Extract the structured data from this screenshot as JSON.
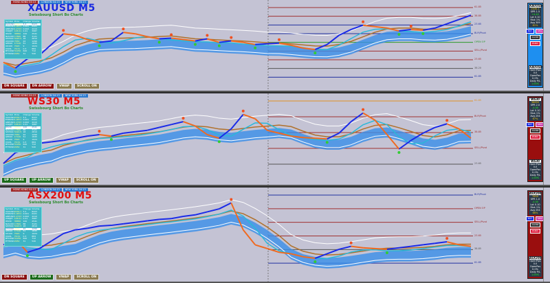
{
  "sessions": [
    "HONG KONG 04:13",
    "LONDON 04:13",
    "NEW YORK 04:13"
  ],
  "subtitle": "Swissbourg Short Bo Charts",
  "table": {
    "headers": [
      "Symbol",
      "Price",
      "Change",
      "Volume"
    ],
    "rows": [
      [
        "XAUUSD",
        "2030.1",
        "5.2",
        "8423"
      ],
      [
        "EURUSD",
        "1.0874",
        "0.001",
        "6421"
      ],
      [
        "GBPUSD",
        "1.2743",
        "0.002",
        "4410"
      ],
      [
        "USDJPY",
        "148.21",
        "0.41",
        "3987"
      ],
      [
        "WS30",
        "38850",
        "120",
        "2541"
      ],
      [
        "NAS100",
        "17800",
        "88",
        "3121"
      ],
      [
        "SPX500",
        "5020.5",
        "18",
        "2810"
      ],
      [
        "ASX200",
        "7650",
        "22",
        "1290"
      ],
      [
        "GER40",
        "17120",
        "51",
        "1845"
      ],
      [
        "UK100",
        "7620",
        "9",
        "1024"
      ],
      [
        "USOIL",
        "76.51",
        "0.3",
        "884"
      ],
      [
        "BTCUSD",
        "51250",
        "640",
        "712"
      ],
      [
        "ETHUSD",
        "2950",
        "31",
        "540"
      ]
    ]
  },
  "panels": [
    {
      "title": "XAUUSD M5",
      "title_color": "#1a2ae0",
      "side_color": "#1e8ff0",
      "highlight": 0,
      "buttons": [
        "DN SQUARE",
        "DN ARROW",
        "VWAP",
        "SCROLL ON"
      ],
      "button_colors": [
        "#8a1010",
        "#8a1010",
        "#8a7a50",
        "#8a7a50"
      ],
      "side": {
        "symbol": "XAUUSD",
        "price": "2030.1",
        "spread": "SPR 1.5",
        "change": "+4.40",
        "lines": [
          "Lot 0.10",
          "Risk 1%",
          "Avg 309"
        ],
        "pct": "61%",
        "stats_symbol": "XAUUSD",
        "stats": [
          "OpenPips",
          "0.0",
          "OpenPos",
          "0.0%",
          "Daily P/L",
          "1.00%"
        ]
      },
      "levels": [
        {
          "label": "61.85",
          "color": "#a03030"
        },
        {
          "label": "38.85",
          "color": "#a03030"
        },
        {
          "label": "23.65",
          "color": "#2030a0"
        },
        {
          "label": "BUY/Pivot",
          "color": "#2030a0"
        },
        {
          "label": "OPEN OP",
          "color": "#2a9a2a"
        },
        {
          "label": "SELL/Pivot",
          "color": "#a03030"
        },
        {
          "label": "23.65",
          "color": "#a03030"
        },
        {
          "label": "38.20",
          "color": "#555"
        },
        {
          "label": "61.85",
          "color": "#2030a0"
        }
      ],
      "price": [
        30,
        22,
        35,
        40,
        55,
        70,
        68,
        62,
        58,
        60,
        72,
        70,
        66,
        63,
        64,
        62,
        60,
        63,
        58,
        60,
        58,
        55,
        56,
        57,
        54,
        50,
        48,
        55,
        68,
        76,
        82,
        80,
        78,
        74,
        76,
        75,
        78,
        84,
        90,
        96
      ]
    },
    {
      "title": "WS30 M5",
      "title_color": "#e01010",
      "side_color": "#9a0e0e",
      "highlight": 4,
      "buttons": [
        "UP SQUARE",
        "UP ARROW",
        "VWAP",
        "SCROLL ON"
      ],
      "button_colors": [
        "#1a6a1a",
        "#1a6a1a",
        "#8a7a50",
        "#8a7a50"
      ],
      "side": {
        "symbol": "WS30",
        "price": "38850",
        "spread": "SPR 2.0",
        "change": "-4.00",
        "lines": [
          "Lot 0.10",
          "Risk 1%",
          "Avg 254"
        ],
        "pct": "67%",
        "stats_symbol": "WS30",
        "stats": [
          "OpenPips",
          "0.0",
          "OpenPos",
          "0.0%",
          "Daily P/L",
          "1.00%"
        ]
      },
      "levels": [
        {
          "label": "61.85",
          "color": "#e09020"
        },
        {
          "label": "BUY/Pivot",
          "color": "#a03030"
        },
        {
          "label": "38.85",
          "color": "#a03030"
        },
        {
          "label": "SELL/Pivot",
          "color": "#a03030"
        },
        {
          "label": "23.65",
          "color": "#555"
        }
      ],
      "price": [
        20,
        35,
        40,
        48,
        50,
        52,
        55,
        58,
        60,
        58,
        62,
        64,
        66,
        70,
        74,
        78,
        72,
        60,
        55,
        68,
        88,
        82,
        66,
        62,
        58,
        56,
        55,
        54,
        62,
        78,
        90,
        80,
        60,
        40,
        52,
        62,
        70,
        75,
        68,
        55
      ]
    },
    {
      "title": "ASX200 M5",
      "title_color": "#e01010",
      "side_color": "#9a0e0e",
      "highlight": 7,
      "buttons": [
        "DN SQUARE",
        "UP ARROW",
        "VWAP",
        "SCROLL ON"
      ],
      "button_colors": [
        "#8a1010",
        "#1a6a1a",
        "#8a7a50",
        "#8a7a50"
      ],
      "side": {
        "symbol": "ASX200",
        "price": "7650",
        "spread": "SPR 1.0",
        "change": "-4.00",
        "lines": [
          "Lot 0.10",
          "Risk 1%",
          "Avg 254"
        ],
        "pct": "66%",
        "stats_symbol": "ASX200",
        "stats": [
          "OpenPips",
          "0.0",
          "OpenPos",
          "0.0%",
          "Daily P/L",
          "1.00%"
        ]
      },
      "levels": [
        {
          "label": "BUY/Pivot",
          "color": "#2030a0"
        },
        {
          "label": "OPEN OP",
          "color": "#a03030"
        },
        {
          "label": "SELL/Pivot",
          "color": "#a03030"
        },
        {
          "label": "23.65",
          "color": "#a03030"
        },
        {
          "label": "38.85",
          "color": "#555"
        },
        {
          "label": "61.85",
          "color": "#2030a0"
        }
      ],
      "price": [
        40,
        48,
        30,
        35,
        45,
        55,
        60,
        62,
        65,
        66,
        68,
        70,
        72,
        74,
        75,
        78,
        80,
        84,
        88,
        96,
        60,
        40,
        35,
        30,
        28,
        24,
        22,
        28,
        34,
        38,
        36,
        35,
        34,
        36,
        38,
        40,
        42,
        44,
        40,
        38
      ]
    }
  ]
}
